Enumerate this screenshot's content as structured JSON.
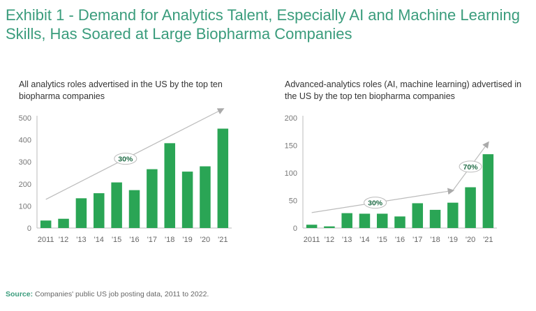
{
  "title": "Exhibit 1 - Demand for Analytics Talent, Especially AI and Machine Learning Skills, Has Soared at Large Biopharma Companies",
  "source_label": "Source:",
  "source_text": " Companies' public US job posting data, 2011 to 2022.",
  "chart_data": [
    {
      "type": "bar",
      "title": "All analytics roles advertised in the US by the top ten biopharma companies",
      "categories": [
        "2011",
        "'12",
        "'13",
        "'14",
        "'15",
        "'16",
        "'17",
        "'18",
        "'19",
        "'20",
        "'21"
      ],
      "values": [
        34,
        42,
        135,
        158,
        207,
        172,
        267,
        385,
        256,
        280,
        451
      ],
      "ylim": [
        0,
        500
      ],
      "yticks": [
        0,
        100,
        200,
        300,
        400,
        500
      ],
      "color": "#2aa555",
      "annotations": [
        {
          "label": "30%",
          "from": [
            "2011",
            130
          ],
          "to": [
            "'21",
            540
          ]
        }
      ]
    },
    {
      "type": "bar",
      "title": "Advanced-analytics roles (AI, machine learning) advertised in the US by the top ten biopharma companies",
      "categories": [
        "2011",
        "'12",
        "'13",
        "'14",
        "'15",
        "'16",
        "'17",
        "'18",
        "'19",
        "'20",
        "'21"
      ],
      "values": [
        6,
        3,
        27,
        26,
        26,
        21,
        45,
        33,
        46,
        74,
        134
      ],
      "ylim": [
        0,
        200
      ],
      "yticks": [
        0,
        50,
        100,
        150,
        200
      ],
      "color": "#2aa555",
      "annotations": [
        {
          "label": "30%",
          "from": [
            "2011",
            28
          ],
          "to": [
            "'19",
            68
          ]
        },
        {
          "label": "70%",
          "from": [
            "'19",
            68
          ],
          "to": [
            "'21",
            155
          ]
        }
      ]
    }
  ]
}
